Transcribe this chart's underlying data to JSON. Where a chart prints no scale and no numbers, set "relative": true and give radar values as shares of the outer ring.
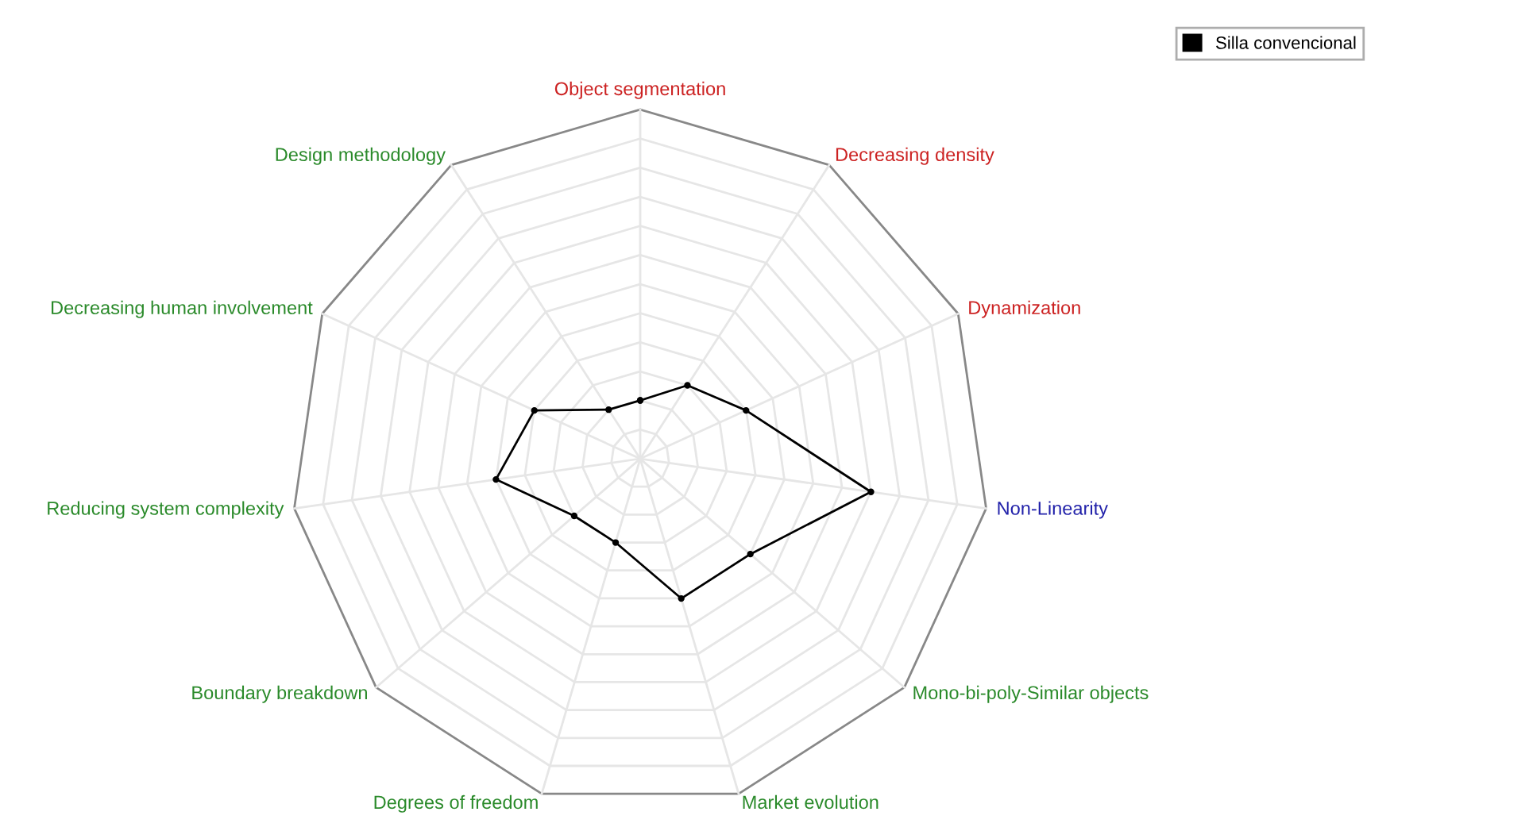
{
  "chart_data": {
    "type": "radar",
    "relative": true,
    "categories": [
      "Object segmentation",
      "Decreasing density",
      "Dynamization",
      "Non-Linearity",
      "Mono-bi-poly-Similar objects",
      "Market evolution",
      "Degrees of freedom",
      "Boundary breakdown",
      "Reducing system complexity",
      "Decreasing human involvement",
      "Design methodology"
    ],
    "series": [
      {
        "name": "Silla convencional",
        "color": "#000000",
        "values": [
          0.167,
          0.25,
          0.333,
          0.667,
          0.417,
          0.417,
          0.25,
          0.25,
          0.417,
          0.333,
          0.167
        ]
      }
    ],
    "grid": true,
    "legend": "top right",
    "marker": "circle",
    "line_style": "solid"
  }
}
